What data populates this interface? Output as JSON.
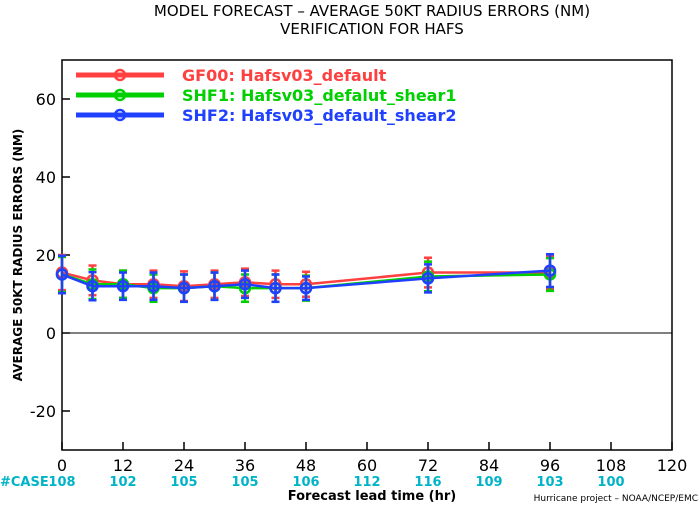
{
  "chart_data": {
    "type": "line",
    "title": "MODEL FORECAST – AVERAGE 50KT RADIUS ERRORS (NM)",
    "subtitle": "VERIFICATION FOR HAFS",
    "xlabel": "Forecast lead time (hr)",
    "ylabel": "AVERAGE 50KT RADIUS ERRORS (NM)",
    "xlim": [
      0,
      120
    ],
    "ylim": [
      -30,
      70
    ],
    "xticks": [
      0,
      12,
      24,
      36,
      48,
      60,
      72,
      84,
      96,
      108,
      120
    ],
    "yticks": [
      -20,
      0,
      20,
      40,
      60
    ],
    "zero_line": true,
    "legend_position": "top-left",
    "case_label": "#CASE",
    "cases": [
      {
        "x": 0,
        "n": "108"
      },
      {
        "x": 12,
        "n": "102"
      },
      {
        "x": 24,
        "n": "105"
      },
      {
        "x": 36,
        "n": "105"
      },
      {
        "x": 48,
        "n": "106"
      },
      {
        "x": 60,
        "n": "112"
      },
      {
        "x": 72,
        "n": "116"
      },
      {
        "x": 84,
        "n": "109"
      },
      {
        "x": 96,
        "n": "103"
      },
      {
        "x": 108,
        "n": "100"
      }
    ],
    "credit": "Hurricane project – NOAA/NCEP/EMC",
    "series": [
      {
        "name": "GF00: Hafsv03_default",
        "color": "#ff4040",
        "x": [
          0,
          6,
          12,
          18,
          24,
          30,
          36,
          42,
          48,
          72,
          96
        ],
        "y": [
          15.5,
          13.5,
          12.5,
          12.5,
          12.0,
          12.5,
          13.0,
          12.5,
          12.5,
          15.5,
          15.5
        ],
        "err": [
          4.5,
          3.8,
          3.5,
          3.5,
          3.8,
          3.5,
          3.5,
          3.5,
          3.2,
          3.8,
          4.2
        ]
      },
      {
        "name": "SHF1: Hafsv03_defalut_shear1",
        "color": "#00d000",
        "x": [
          0,
          6,
          12,
          18,
          24,
          30,
          36,
          42,
          48,
          72,
          96
        ],
        "y": [
          15.0,
          12.5,
          12.5,
          11.5,
          11.5,
          12.0,
          11.5,
          11.5,
          11.5,
          14.5,
          15.0
        ],
        "err": [
          4.5,
          3.8,
          3.5,
          3.5,
          3.5,
          3.5,
          3.5,
          3.5,
          3.2,
          3.8,
          4.2
        ]
      },
      {
        "name": "SHF2: Hafsv03_default_shear2",
        "color": "#2040ff",
        "x": [
          0,
          6,
          12,
          18,
          24,
          30,
          36,
          42,
          48,
          72,
          96
        ],
        "y": [
          15.0,
          12.0,
          12.0,
          12.0,
          11.5,
          12.0,
          12.5,
          11.5,
          11.5,
          14.0,
          16.0
        ],
        "err": [
          4.8,
          3.6,
          3.5,
          3.5,
          3.5,
          3.5,
          3.5,
          3.5,
          3.0,
          3.6,
          4.2
        ]
      }
    ]
  }
}
